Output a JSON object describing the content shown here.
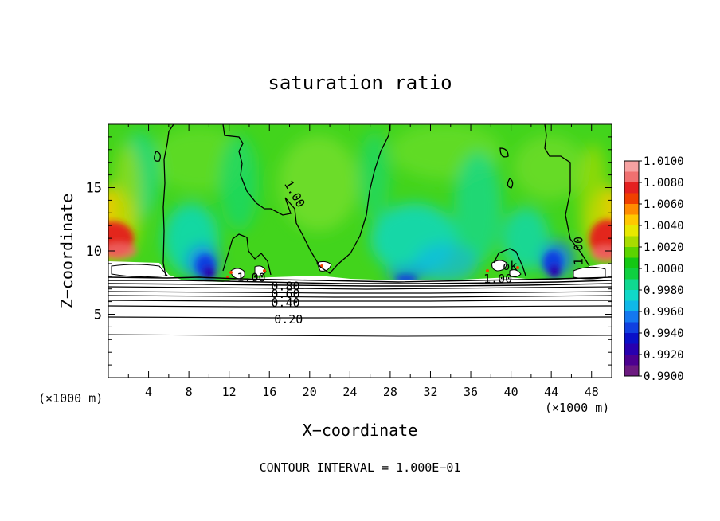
{
  "chart_data": {
    "type": "heatmap",
    "title": "saturation ratio",
    "xlabel": "X−coordinate",
    "ylabel": "Z−coordinate",
    "x_unit_left": "(×1000 m)",
    "x_unit_right": "(×1000 m)",
    "footer": "CONTOUR INTERVAL = 1.000E−01",
    "xlim": [
      0,
      50
    ],
    "ylim": [
      0,
      20
    ],
    "x_ticks": [
      4,
      8,
      12,
      16,
      20,
      24,
      28,
      32,
      36,
      40,
      44,
      48
    ],
    "y_ticks": [
      5,
      10,
      15
    ],
    "colorbar": {
      "labels": [
        "1.0100",
        "1.0080",
        "1.0060",
        "1.0040",
        "1.0020",
        "1.0000",
        "0.9980",
        "0.9960",
        "0.9940",
        "0.9920",
        "0.9900"
      ],
      "colors": [
        "#f6a2a2",
        "#f07070",
        "#e42020",
        "#f04000",
        "#ff8c00",
        "#ffc800",
        "#e8e800",
        "#a8dc00",
        "#5cd400",
        "#14c814",
        "#10d040",
        "#10d890",
        "#10d8c8",
        "#10b8e8",
        "#1478f0",
        "#1040e0",
        "#0a10c8",
        "#2800b0",
        "#4c0090",
        "#6c1a80"
      ]
    },
    "contour_labels": [
      {
        "text": "1.00",
        "x": 18.5,
        "y": 14.5
      },
      {
        "text": "1.00",
        "x": 14.2,
        "y": 7.9
      },
      {
        "text": "0.80",
        "x": 17.6,
        "y": 7.2
      },
      {
        "text": "0.60",
        "x": 17.6,
        "y": 6.6
      },
      {
        "text": "0.40",
        "x": 17.6,
        "y": 5.9
      },
      {
        "text": "0.20",
        "x": 17.9,
        "y": 4.6
      },
      {
        "text": "1.00",
        "x": 38.7,
        "y": 7.8
      },
      {
        "text": "1.00",
        "x": 46.7,
        "y": 10.0
      },
      {
        "text": "ok",
        "x": 39.9,
        "y": 8.8
      }
    ]
  }
}
